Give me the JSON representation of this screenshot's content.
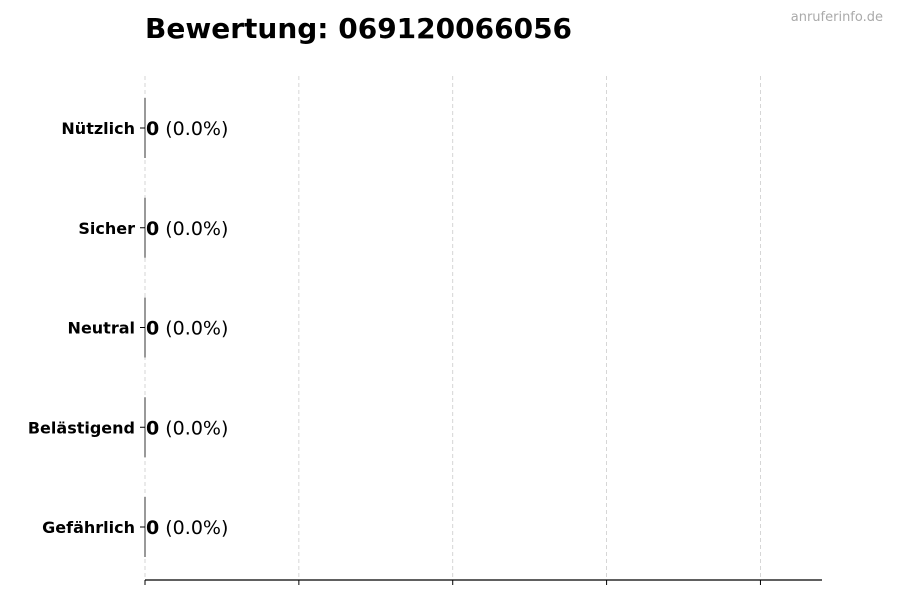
{
  "watermark": "anruferinfo.de",
  "chart_data": {
    "type": "bar",
    "orientation": "horizontal",
    "title": "Bewertung: 069120066056",
    "categories": [
      "Nützlich",
      "Sicher",
      "Neutral",
      "Belästigend",
      "Gefährlich"
    ],
    "values": [
      0,
      0,
      0,
      0,
      0
    ],
    "value_labels": [
      "0",
      "0",
      "0",
      "0",
      "0"
    ],
    "percent_labels": [
      "(0.0%)",
      "(0.0%)",
      "(0.0%)",
      "(0.0%)",
      "(0.0%)"
    ],
    "xlabel": "",
    "ylabel": "",
    "xlim": [
      0,
      4.4
    ],
    "xticks": [
      0,
      1,
      2,
      3,
      4
    ],
    "xtick_labels_shown": false,
    "grid": "x, dashed",
    "legend": "none"
  }
}
